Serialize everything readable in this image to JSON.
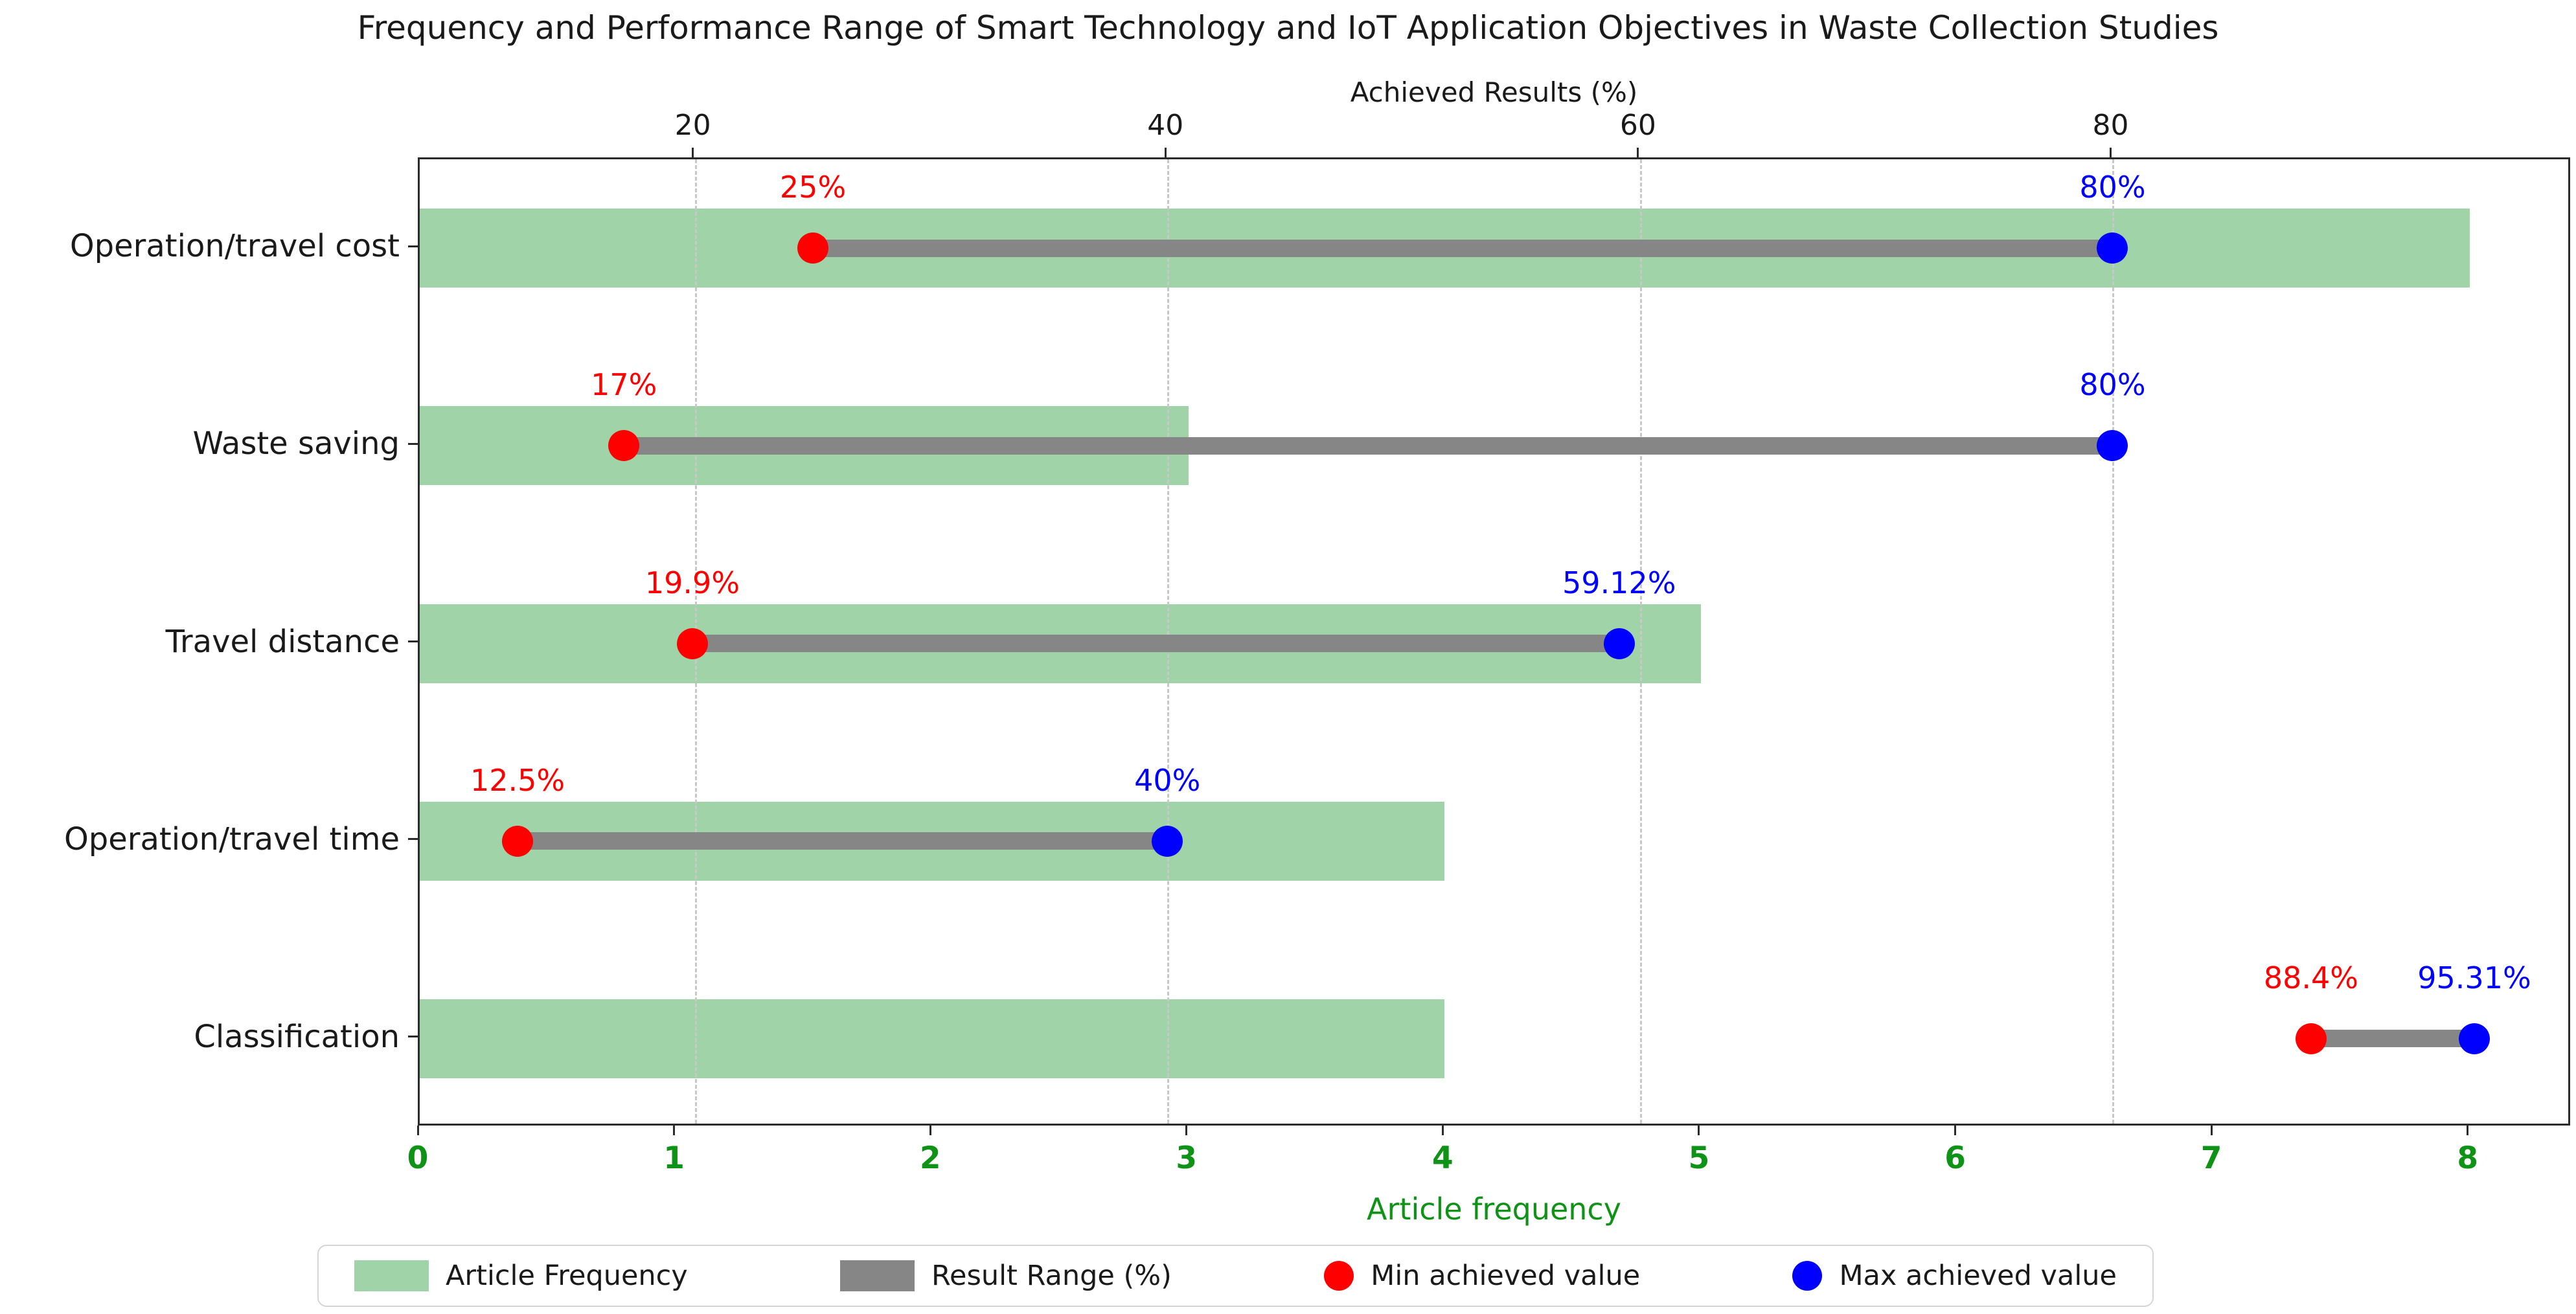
{
  "chart_data": {
    "type": "bar",
    "orientation": "horizontal",
    "title": "Frequency and Performance Range of Smart Technology and IoT Application Objectives in Waste Collection Studies",
    "categories": [
      "Operation/travel cost",
      "Waste saving",
      "Travel distance",
      "Operation/travel time",
      "Classification"
    ],
    "series": [
      {
        "name": "Article Frequency",
        "axis": "bottom",
        "values": [
          8,
          3,
          5,
          4,
          4
        ]
      },
      {
        "name": "Result Range (%)",
        "axis": "top",
        "min": [
          25,
          17,
          19.9,
          12.5,
          88.4
        ],
        "max": [
          80,
          80,
          59.12,
          40,
          95.31
        ],
        "min_labels": [
          "25%",
          "17%",
          "19.9%",
          "12.5%",
          "88.4%"
        ],
        "max_labels": [
          "80%",
          "80%",
          "59.12%",
          "40%",
          "95.31%"
        ]
      }
    ],
    "axes": {
      "bottom": {
        "label": "Article frequency",
        "ticks": [
          "0",
          "1",
          "2",
          "3",
          "4",
          "5",
          "6",
          "7",
          "8"
        ],
        "range": [
          0,
          8.4
        ],
        "color": "#0e9316"
      },
      "top": {
        "label": "Achieved Results (%)",
        "ticks": [
          "20",
          "40",
          "60",
          "80"
        ],
        "tick_values": [
          20,
          40,
          60,
          80
        ],
        "range": [
          8.36,
          99.45
        ],
        "grid": true,
        "color": "#1a1a1a"
      }
    },
    "legend": [
      {
        "label": "Article Frequency",
        "marker": "bar",
        "color": "#a0d4a8"
      },
      {
        "label": "Result Range (%)",
        "marker": "bar",
        "color": "#868686"
      },
      {
        "label": "Min achieved value",
        "marker": "dot",
        "color": "#ff0000"
      },
      {
        "label": "Max achieved value",
        "marker": "dot",
        "color": "#0000ff"
      }
    ],
    "colors": {
      "frequency_bar": "#a0d4a8",
      "range_bar": "#868686",
      "min_dot": "#ff0000",
      "max_dot": "#0000ff",
      "min_label": "#ff0000",
      "max_label": "#0000ff",
      "grid": "#c8c8c8",
      "bottom_axis": "#0e9316"
    }
  }
}
